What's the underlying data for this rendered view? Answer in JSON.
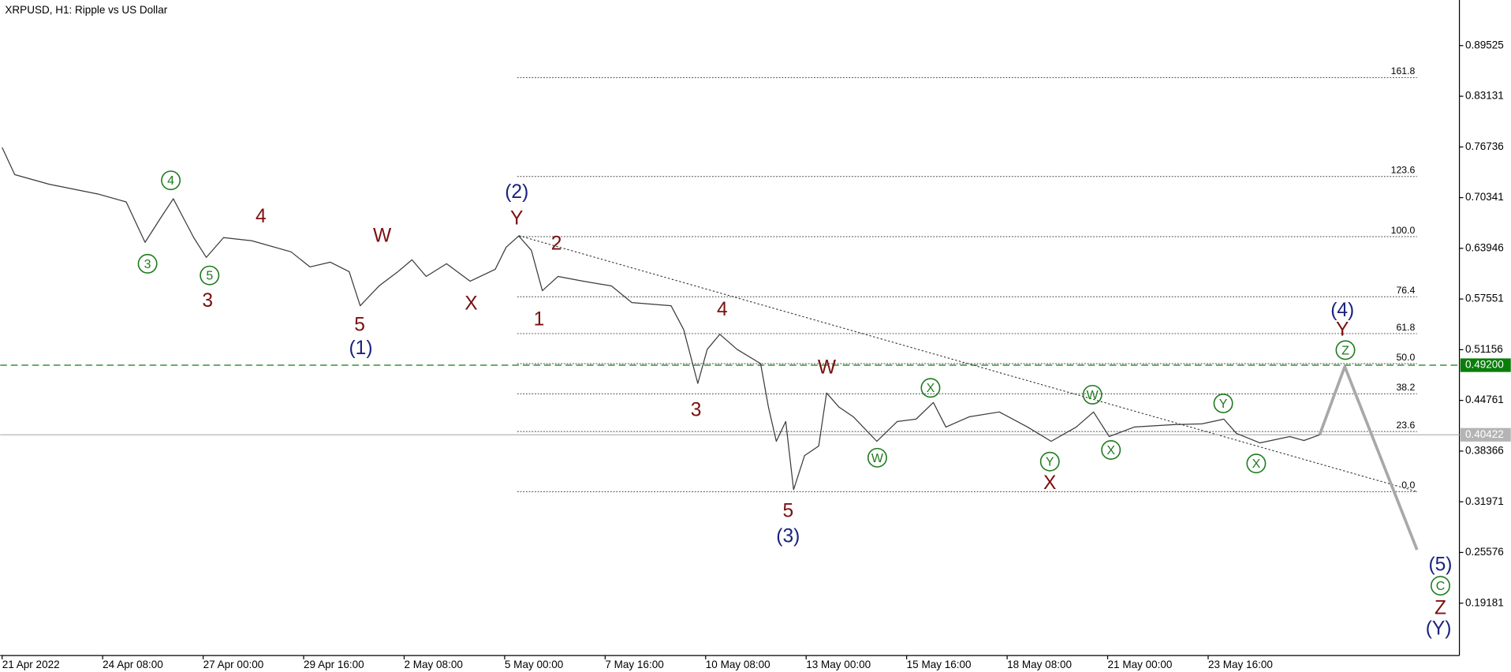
{
  "chart_data": {
    "type": "line",
    "title": "XRPUSD, H1:  Ripple vs US Dollar",
    "xlim": [
      16,
      944
    ],
    "xticks": [
      {
        "value": 16,
        "label": "21 Apr 2022"
      },
      {
        "value": 80,
        "label": "24 Apr 08:00"
      },
      {
        "value": 144,
        "label": "27 Apr 00:00"
      },
      {
        "value": 208,
        "label": "29 Apr 16:00"
      },
      {
        "value": 272,
        "label": "2 May 08:00"
      },
      {
        "value": 336,
        "label": "5 May 00:00"
      },
      {
        "value": 400,
        "label": "7 May 16:00"
      },
      {
        "value": 464,
        "label": "10 May 08:00"
      },
      {
        "value": 528,
        "label": "13 May 00:00"
      },
      {
        "value": 592,
        "label": "15 May 16:00"
      },
      {
        "value": 656,
        "label": "18 May 08:00"
      },
      {
        "value": 720,
        "label": "21 May 00:00"
      },
      {
        "value": 784,
        "label": "23 May 16:00"
      }
    ],
    "ylim": [
      0.12575,
      0.95275
    ],
    "yticks": [
      0.89525,
      0.83131,
      0.76736,
      0.70341,
      0.63946,
      0.57551,
      0.51156,
      0.44761,
      0.38366,
      0.31971,
      0.25576,
      0.19181
    ],
    "series": [
      {
        "color": "#3a3a3a",
        "width": 1,
        "x": [
          16,
          24,
          46,
          77,
          95,
          107,
          117,
          125,
          138,
          146,
          157,
          175,
          200,
          212,
          225,
          237,
          244,
          256,
          268,
          277,
          286,
          299,
          314,
          330,
          337,
          345,
          353,
          360,
          370,
          386,
          404,
          417,
          442,
          450,
          459,
          465,
          473,
          484,
          499,
          504,
          509,
          515,
          520,
          527,
          536,
          541,
          549,
          558,
          573,
          586,
          598,
          609,
          617,
          632,
          651,
          669,
          684,
          700,
          711,
          721,
          737,
          762,
          780,
          794,
          802,
          817,
          836,
          845,
          855
        ],
        "values": [
          0.7667,
          0.7325,
          0.7203,
          0.708,
          0.698,
          0.647,
          0.678,
          0.702,
          0.653,
          0.628,
          0.653,
          0.649,
          0.635,
          0.616,
          0.622,
          0.61,
          0.567,
          0.592,
          0.61,
          0.625,
          0.604,
          0.62,
          0.598,
          0.613,
          0.641,
          0.655,
          0.637,
          0.586,
          0.604,
          0.598,
          0.592,
          0.571,
          0.567,
          0.537,
          0.469,
          0.512,
          0.531,
          0.512,
          0.494,
          0.439,
          0.396,
          0.421,
          0.335,
          0.378,
          0.39,
          0.457,
          0.439,
          0.427,
          0.396,
          0.421,
          0.424,
          0.445,
          0.414,
          0.427,
          0.433,
          0.414,
          0.396,
          0.414,
          0.433,
          0.402,
          0.414,
          0.417,
          0.418,
          0.424,
          0.406,
          0.394,
          0.402,
          0.397,
          0.4042
        ]
      },
      {
        "color": "#a8a8a8",
        "width": 3,
        "x": [
          855,
          871,
          917
        ],
        "values": [
          0.4042,
          0.4903,
          0.2591
        ]
      }
    ],
    "hlines": [
      {
        "value": 0.492,
        "label": "0.49200",
        "color": "#0a7d0a",
        "dashed": true
      },
      {
        "value": 0.40422,
        "color": "#b4b4b4",
        "dashed": false
      }
    ],
    "trendline": {
      "x": [
        345,
        917
      ],
      "values": [
        0.6555,
        0.3325
      ]
    },
    "fibonacci": {
      "x": [
        344,
        917
      ],
      "levels": [
        {
          "label": "161.8",
          "price": 0.8549
        },
        {
          "label": "123.6",
          "price": 0.7301
        },
        {
          "label": "100.0",
          "price": 0.6542
        },
        {
          "label": "76.4",
          "price": 0.5784
        },
        {
          "label": "61.8",
          "price": 0.5319
        },
        {
          "label": "50.0",
          "price": 0.494
        },
        {
          "label": "38.2",
          "price": 0.456
        },
        {
          "label": "23.6",
          "price": 0.4083
        },
        {
          "label": "0.0",
          "price": 0.3325
        }
      ]
    },
    "annotations": [
      {
        "text": "3",
        "x": 108.6,
        "price": 0.62,
        "color": "#1e7b1e",
        "circled": true
      },
      {
        "text": "4",
        "x": 123.4,
        "price": 0.7252,
        "color": "#1e7b1e",
        "circled": true
      },
      {
        "text": "5",
        "x": 148.1,
        "price": 0.6053,
        "color": "#1e7b1e",
        "circled": true
      },
      {
        "text": "3",
        "x": 146.8,
        "price": 0.5735,
        "color": "#7a1010",
        "circled": false
      },
      {
        "text": "4",
        "x": 180.8,
        "price": 0.6799,
        "color": "#7a1010",
        "circled": false
      },
      {
        "text": "5",
        "x": 243.7,
        "price": 0.5429,
        "color": "#7a1010",
        "circled": false
      },
      {
        "text": "(1)",
        "x": 244.4,
        "price": 0.5136,
        "color": "#1a237e",
        "circled": false
      },
      {
        "text": "W",
        "x": 258,
        "price": 0.6555,
        "color": "#7a1010",
        "circled": false
      },
      {
        "text": "X",
        "x": 314.7,
        "price": 0.5698,
        "color": "#7a1010",
        "circled": false
      },
      {
        "text": "(2)",
        "x": 343.7,
        "price": 0.7105,
        "color": "#1a237e",
        "circled": false
      },
      {
        "text": "Y",
        "x": 343.7,
        "price": 0.6775,
        "color": "#7a1010",
        "circled": false
      },
      {
        "text": "2",
        "x": 369,
        "price": 0.6457,
        "color": "#7a1010",
        "circled": false
      },
      {
        "text": "1",
        "x": 357.9,
        "price": 0.5502,
        "color": "#7a1010",
        "circled": false
      },
      {
        "text": "4",
        "x": 474.6,
        "price": 0.5625,
        "color": "#7a1010",
        "circled": false
      },
      {
        "text": "3",
        "x": 457.9,
        "price": 0.4353,
        "color": "#7a1010",
        "circled": false
      },
      {
        "text": "W",
        "x": 541.2,
        "price": 0.4891,
        "color": "#7a1010",
        "circled": false
      },
      {
        "text": "5",
        "x": 516.5,
        "price": 0.308,
        "color": "#7a1010",
        "circled": false
      },
      {
        "text": "(3)",
        "x": 516.5,
        "price": 0.2762,
        "color": "#1a237e",
        "circled": false
      },
      {
        "text": "W",
        "x": 573.3,
        "price": 0.3753,
        "color": "#1e7b1e",
        "circled": true
      },
      {
        "text": "X",
        "x": 607.2,
        "price": 0.4634,
        "color": "#1e7b1e",
        "circled": true
      },
      {
        "text": "Y",
        "x": 683.2,
        "price": 0.3704,
        "color": "#1e7b1e",
        "circled": true
      },
      {
        "text": "X",
        "x": 683.2,
        "price": 0.3435,
        "color": "#7a1010",
        "circled": false
      },
      {
        "text": "W",
        "x": 710.3,
        "price": 0.4548,
        "color": "#1e7b1e",
        "circled": true
      },
      {
        "text": "X",
        "x": 722.1,
        "price": 0.3851,
        "color": "#1e7b1e",
        "circled": true
      },
      {
        "text": "Y",
        "x": 793.6,
        "price": 0.4438,
        "color": "#1e7b1e",
        "circled": true
      },
      {
        "text": "X",
        "x": 814.6,
        "price": 0.368,
        "color": "#1e7b1e",
        "circled": true
      },
      {
        "text": "(4)",
        "x": 869.5,
        "price": 0.5613,
        "color": "#1a237e",
        "circled": false
      },
      {
        "text": "Y",
        "x": 869.5,
        "price": 0.5368,
        "color": "#7a1010",
        "circled": false
      },
      {
        "text": "Z",
        "x": 871.4,
        "price": 0.5111,
        "color": "#1e7b1e",
        "circled": true
      },
      {
        "text": "(5)",
        "x": 931.9,
        "price": 0.2407,
        "color": "#1a237e",
        "circled": false
      },
      {
        "text": "C",
        "x": 931.9,
        "price": 0.2138,
        "color": "#1e7b1e",
        "circled": true
      },
      {
        "text": "Z",
        "x": 931.9,
        "price": 0.1857,
        "color": "#7a1010",
        "circled": false
      },
      {
        "text": "(Y)",
        "x": 930.7,
        "price": 0.16,
        "color": "#1a237e",
        "circled": false
      }
    ]
  }
}
